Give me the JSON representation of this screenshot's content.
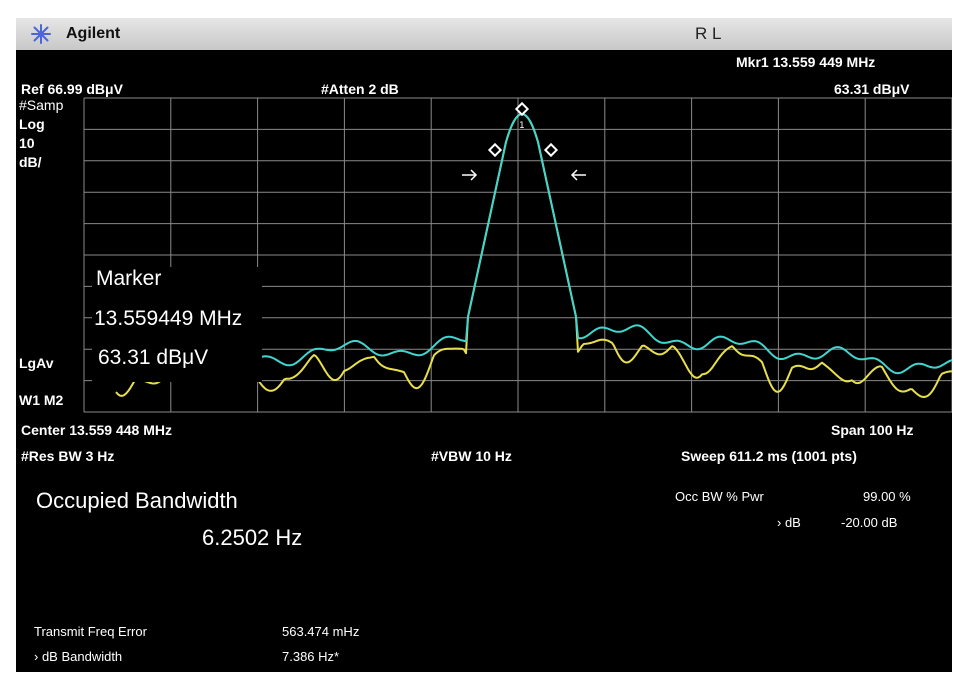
{
  "header": {
    "brand": "Agilent",
    "mode": "R L",
    "marker_readout_freq": "Mkr1  13.559 449 MHz",
    "marker_readout_level": "63.31 dBμV",
    "ref_level": "Ref 66.99 dBμV",
    "attenuation": "#Atten 2 dB"
  },
  "left_panel": {
    "detector": "#Samp",
    "scale_type": "Log",
    "scale_value": "10",
    "scale_unit": "dB/",
    "avg_type": "LgAv",
    "traces": "W1   M2"
  },
  "marker_overlay": {
    "title": "Marker",
    "freq": "13.559449 MHz",
    "level": "63.31 dBμV",
    "marker_number": "1"
  },
  "footer": {
    "center": "Center 13.559 448 MHz",
    "span": "Span 100 Hz",
    "res_bw": "#Res BW 3 Hz",
    "vbw": "#VBW 10 Hz",
    "sweep": "Sweep 611.2 ms (1001 pts)"
  },
  "measurement": {
    "title": "Occupied Bandwidth",
    "value": "6.2502 Hz",
    "occ_bw_label": "Occ BW % Pwr",
    "occ_bw_value": "99.00 %",
    "xdb_label": "› dB",
    "xdb_value": "-20.00 dB",
    "tx_freq_error_label": "Transmit Freq Error",
    "tx_freq_error_value": "563.474 mHz",
    "xdb_bandwidth_label": "› dB Bandwidth",
    "xdb_bandwidth_value": "7.386 Hz*"
  },
  "colors": {
    "trace_cyan": "#3fd6d0",
    "trace_yellow": "#e8e04a",
    "grid": "#8a8a8a",
    "background": "#000000",
    "logo": "#4a66d8"
  }
}
